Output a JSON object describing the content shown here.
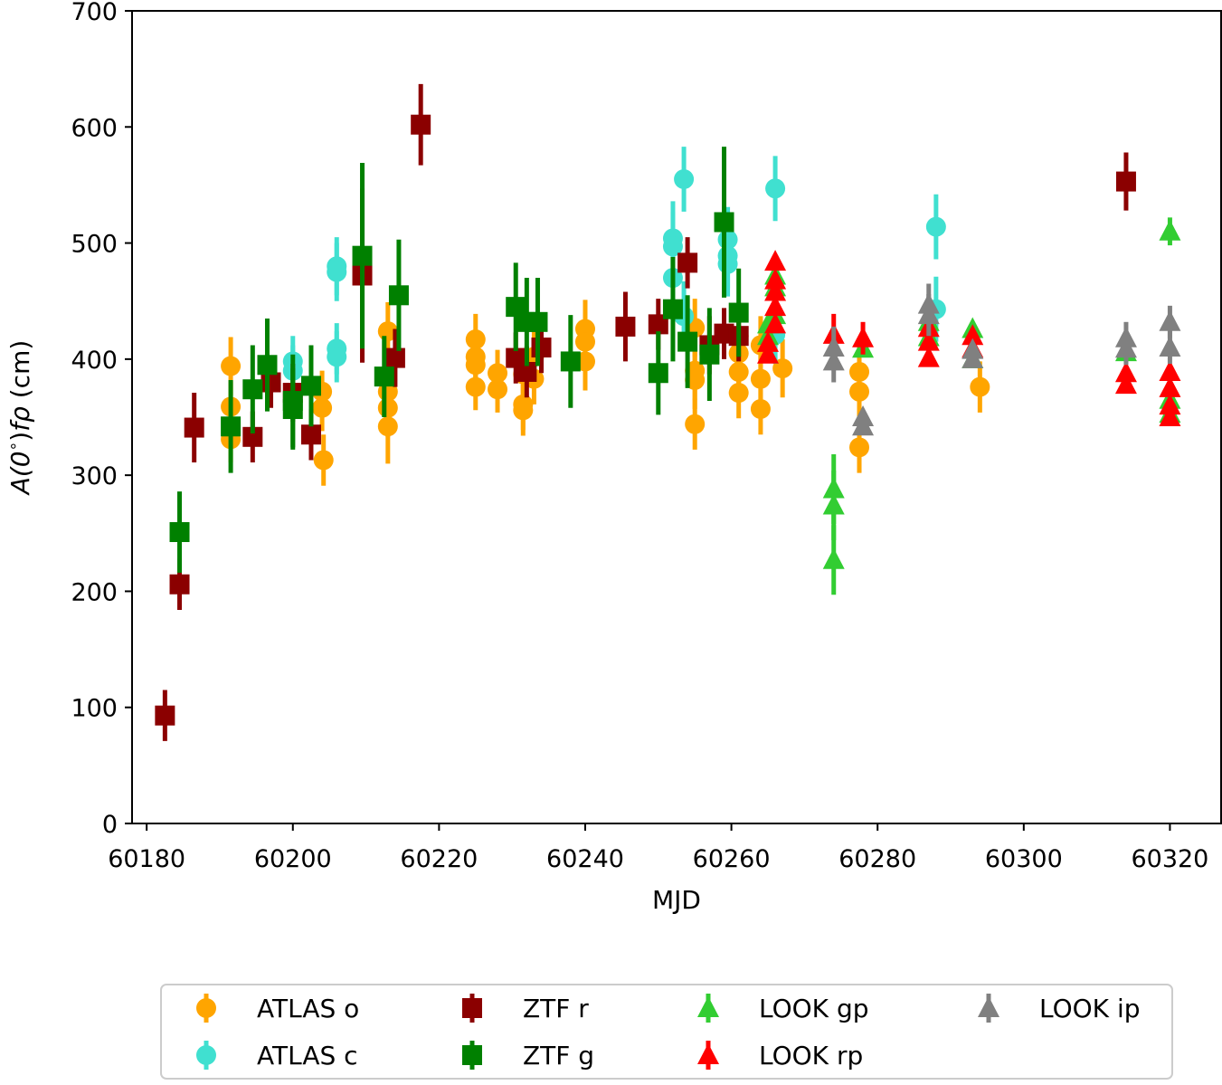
{
  "chart_data": {
    "type": "scatter",
    "title": "",
    "xlabel": "MJD",
    "ylabel_prefix": "A(0",
    "ylabel_degree": "∘",
    "ylabel_suffix": ")",
    "ylabel_italic": "fρ",
    "ylabel_units": " (cm)",
    "xlim": [
      60178,
      60327
    ],
    "ylim": [
      0,
      700
    ],
    "xticks": [
      60180,
      60200,
      60220,
      60240,
      60260,
      60280,
      60300,
      60320
    ],
    "yticks": [
      0,
      100,
      200,
      300,
      400,
      500,
      600,
      700
    ],
    "grid": false,
    "legend_position": "bottom-center, outside plot",
    "series": [
      {
        "name": "ATLAS o",
        "label": "ATLAS o",
        "marker": "circle",
        "color": "#FFA500",
        "points": [
          [
            60191.5,
            394,
            25
          ],
          [
            60191.5,
            359,
            22
          ],
          [
            60191.5,
            331,
            20
          ],
          [
            60204,
            372,
            18
          ],
          [
            60204,
            358,
            20
          ],
          [
            60204.2,
            313,
            22
          ],
          [
            60213,
            424,
            25
          ],
          [
            60213,
            372,
            25
          ],
          [
            60213,
            358,
            25
          ],
          [
            60213,
            342,
            32
          ],
          [
            60225,
            417,
            22
          ],
          [
            60225,
            402,
            22
          ],
          [
            60225,
            395,
            22
          ],
          [
            60225,
            376,
            20
          ],
          [
            60228,
            388,
            20
          ],
          [
            60228,
            374,
            20
          ],
          [
            60231.5,
            387,
            22
          ],
          [
            60231.5,
            361,
            22
          ],
          [
            60231.5,
            356,
            22
          ],
          [
            60233,
            402,
            22
          ],
          [
            60233,
            383,
            22
          ],
          [
            60240,
            426,
            25
          ],
          [
            60240,
            415,
            25
          ],
          [
            60240,
            398,
            25
          ],
          [
            60255,
            427,
            25
          ],
          [
            60255,
            390,
            25
          ],
          [
            60255,
            382,
            25
          ],
          [
            60255,
            344,
            22
          ],
          [
            60261,
            420,
            25
          ],
          [
            60261,
            405,
            25
          ],
          [
            60261,
            389,
            22
          ],
          [
            60261,
            371,
            22
          ],
          [
            60264,
            412,
            25
          ],
          [
            60264,
            383,
            22
          ],
          [
            60264,
            357,
            22
          ],
          [
            60267,
            392,
            25
          ],
          [
            60277.5,
            389,
            22
          ],
          [
            60277.5,
            372,
            22
          ],
          [
            60277.5,
            324,
            22
          ],
          [
            60294,
            376,
            22
          ]
        ]
      },
      {
        "name": "ATLAS c",
        "label": "ATLAS c",
        "marker": "circle",
        "color": "#40E0D0",
        "points": [
          [
            60200,
            398,
            22
          ],
          [
            60200,
            390,
            22
          ],
          [
            60206,
            480,
            25
          ],
          [
            60206,
            475,
            25
          ],
          [
            60206,
            409,
            22
          ],
          [
            60206,
            402,
            22
          ],
          [
            60252,
            504,
            32
          ],
          [
            60252,
            497,
            30
          ],
          [
            60252,
            470,
            30
          ],
          [
            60253.5,
            555,
            28
          ],
          [
            60253.5,
            437,
            30
          ],
          [
            60259.5,
            503,
            28
          ],
          [
            60259.5,
            489,
            28
          ],
          [
            60259.5,
            482,
            28
          ],
          [
            60266,
            547,
            28
          ],
          [
            60266,
            421,
            25
          ],
          [
            60288,
            514,
            28
          ],
          [
            60288,
            443,
            28
          ]
        ]
      },
      {
        "name": "ZTF r",
        "label": "ZTF r",
        "marker": "square",
        "color": "#8B0000",
        "points": [
          [
            60182.5,
            93,
            22
          ],
          [
            60184.5,
            206,
            22
          ],
          [
            60186.5,
            341,
            30
          ],
          [
            60194.5,
            333,
            22
          ],
          [
            60197,
            380,
            22
          ],
          [
            60200,
            371,
            25
          ],
          [
            60202.5,
            335,
            22
          ],
          [
            60209.5,
            472,
            75
          ],
          [
            60214,
            401,
            25
          ],
          [
            60217.5,
            602,
            35
          ],
          [
            60230.5,
            401,
            22
          ],
          [
            60232,
            389,
            22
          ],
          [
            60234,
            410,
            22
          ],
          [
            60245.5,
            428,
            30
          ],
          [
            60250,
            430,
            22
          ],
          [
            60254,
            483,
            22
          ],
          [
            60257,
            412,
            25
          ],
          [
            60259,
            422,
            22
          ],
          [
            60261,
            420,
            22
          ],
          [
            60314,
            553,
            25
          ]
        ]
      },
      {
        "name": "ZTF g",
        "label": "ZTF g",
        "marker": "square",
        "color": "#008000",
        "points": [
          [
            60184.5,
            251,
            35
          ],
          [
            60191.5,
            342,
            40
          ],
          [
            60194.5,
            374,
            38
          ],
          [
            60196.5,
            395,
            40
          ],
          [
            60200,
            364,
            40
          ],
          [
            60200,
            357,
            35
          ],
          [
            60202.5,
            377,
            35
          ],
          [
            60209.5,
            489,
            80
          ],
          [
            60212.5,
            385,
            35
          ],
          [
            60214.5,
            455,
            48
          ],
          [
            60230.5,
            445,
            38
          ],
          [
            60232,
            432,
            38
          ],
          [
            60233.5,
            432,
            38
          ],
          [
            60238,
            398,
            40
          ],
          [
            60250,
            388,
            36
          ],
          [
            60252,
            443,
            45
          ],
          [
            60254,
            415,
            40
          ],
          [
            60257,
            404,
            40
          ],
          [
            60259,
            518,
            65
          ],
          [
            60261,
            440,
            38
          ]
        ]
      },
      {
        "name": "LOOK gp",
        "label": "LOOK gp",
        "marker": "triangle",
        "color": "#32CD32",
        "points": [
          [
            60265,
            430,
            0
          ],
          [
            60265,
            420,
            0
          ],
          [
            60266,
            472,
            0
          ],
          [
            60266,
            462,
            0
          ],
          [
            60266,
            438,
            0
          ],
          [
            60274,
            288,
            30
          ],
          [
            60274,
            274,
            30
          ],
          [
            60274,
            227,
            30
          ],
          [
            60278,
            409,
            0
          ],
          [
            60287,
            432,
            0
          ],
          [
            60287,
            419,
            0
          ],
          [
            60293,
            426,
            0
          ],
          [
            60293,
            400,
            0
          ],
          [
            60314,
            406,
            0
          ],
          [
            60320,
            510,
            12
          ],
          [
            60320,
            365,
            0
          ],
          [
            60320,
            353,
            0
          ]
        ]
      },
      {
        "name": "LOOK rp",
        "label": "LOOK rp",
        "marker": "triangle",
        "color": "#FF0000",
        "points": [
          [
            60265,
            414,
            0
          ],
          [
            60265,
            404,
            0
          ],
          [
            60266,
            484,
            0
          ],
          [
            60266,
            468,
            0
          ],
          [
            60266,
            458,
            0
          ],
          [
            60266,
            445,
            0
          ],
          [
            60266,
            430,
            0
          ],
          [
            60274,
            421,
            18
          ],
          [
            60278,
            418,
            14
          ],
          [
            60287,
            427,
            0
          ],
          [
            60287,
            415,
            0
          ],
          [
            60287,
            401,
            0
          ],
          [
            60293,
            420,
            0
          ],
          [
            60293,
            409,
            0
          ],
          [
            60314,
            388,
            0
          ],
          [
            60314,
            378,
            0
          ],
          [
            60320,
            389,
            0
          ],
          [
            60320,
            375,
            0
          ],
          [
            60320,
            360,
            0
          ],
          [
            60320,
            350,
            0
          ]
        ]
      },
      {
        "name": "LOOK ip",
        "label": "LOOK ip",
        "marker": "triangle",
        "color": "#808080",
        "points": [
          [
            60274,
            410,
            18
          ],
          [
            60274,
            398,
            18
          ],
          [
            60278,
            350,
            0
          ],
          [
            60278,
            342,
            0
          ],
          [
            60287,
            447,
            18
          ],
          [
            60287,
            438,
            18
          ],
          [
            60293,
            408,
            0
          ],
          [
            60293,
            400,
            0
          ],
          [
            60314,
            418,
            14
          ],
          [
            60314,
            409,
            14
          ],
          [
            60320,
            432,
            14
          ],
          [
            60320,
            410,
            14
          ]
        ]
      }
    ]
  }
}
